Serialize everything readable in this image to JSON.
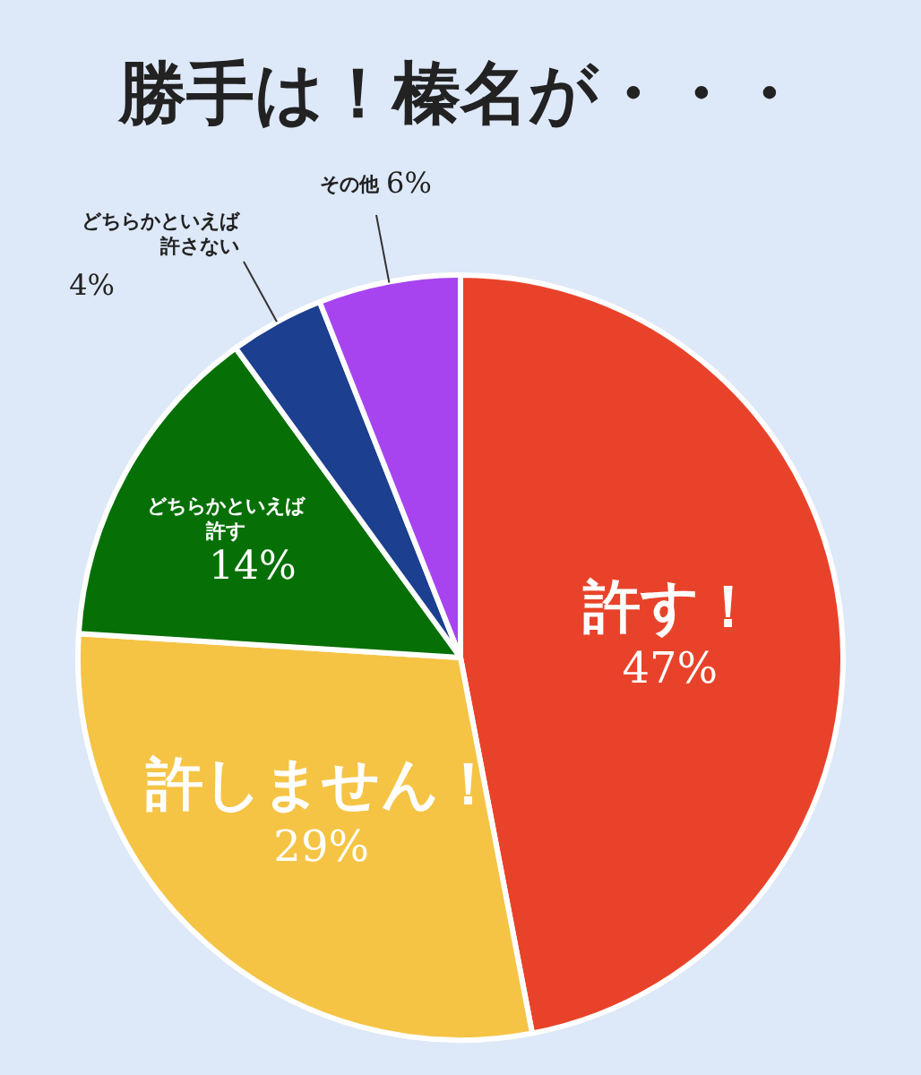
{
  "chart_data": {
    "type": "pie",
    "title": "勝手は！榛名が・・・",
    "categories": [
      "許す！",
      "許しません！",
      "どちらかといえば許す",
      "どちらかといえば許さない",
      "その他"
    ],
    "values": [
      47,
      29,
      14,
      4,
      6
    ],
    "value_labels": [
      "47%",
      "29%",
      "14%",
      "4%",
      "6%"
    ],
    "colors": [
      "#e8432a",
      "#f5c445",
      "#067006",
      "#1c3f8f",
      "#a744f0"
    ],
    "legend": false
  }
}
